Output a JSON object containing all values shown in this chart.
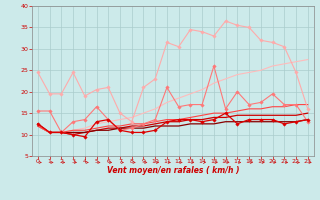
{
  "xlabel": "Vent moyen/en rafales ( km/h )",
  "bg_color": "#cceaea",
  "grid_color": "#aacccc",
  "x_ticks": [
    0,
    1,
    2,
    3,
    4,
    5,
    6,
    7,
    8,
    9,
    10,
    11,
    12,
    13,
    14,
    15,
    16,
    17,
    18,
    19,
    20,
    21,
    22,
    23
  ],
  "ylim": [
    5,
    40
  ],
  "xlim": [
    -0.5,
    23.5
  ],
  "yticks": [
    5,
    10,
    15,
    20,
    25,
    30,
    35,
    40
  ],
  "lines": [
    {
      "color": "#ffaaaa",
      "lw": 0.8,
      "marker": "D",
      "ms": 1.8,
      "y": [
        24.5,
        19.5,
        19.5,
        24.5,
        19.0,
        20.5,
        21.0,
        15.0,
        13.0,
        21.0,
        23.0,
        31.5,
        30.5,
        34.5,
        34.0,
        33.0,
        36.5,
        35.5,
        35.0,
        32.0,
        31.5,
        30.5,
        24.5,
        16.0
      ]
    },
    {
      "color": "#ff7777",
      "lw": 0.8,
      "marker": "D",
      "ms": 1.8,
      "y": [
        15.5,
        15.5,
        10.5,
        13.0,
        13.5,
        16.5,
        13.5,
        11.0,
        11.5,
        12.5,
        13.5,
        21.0,
        16.5,
        17.0,
        17.0,
        26.0,
        16.0,
        20.0,
        17.0,
        17.5,
        19.5,
        17.0,
        17.0,
        13.0
      ]
    },
    {
      "color": "#dd0000",
      "lw": 0.9,
      "marker": "D",
      "ms": 1.8,
      "y": [
        12.5,
        10.5,
        10.5,
        10.0,
        9.5,
        13.0,
        13.5,
        11.0,
        10.5,
        10.5,
        11.0,
        13.0,
        13.5,
        13.5,
        13.0,
        13.5,
        15.0,
        12.5,
        13.5,
        13.5,
        13.5,
        12.5,
        13.0,
        13.5
      ]
    },
    {
      "color": "#cc0000",
      "lw": 0.9,
      "marker": null,
      "ms": 0,
      "y": [
        12.5,
        10.5,
        10.5,
        10.0,
        10.5,
        11.0,
        11.5,
        11.5,
        12.0,
        12.0,
        12.5,
        13.0,
        13.0,
        13.5,
        13.5,
        14.0,
        14.0,
        14.5,
        14.5,
        14.5,
        14.5,
        14.5,
        14.5,
        15.0
      ]
    },
    {
      "color": "#880000",
      "lw": 0.9,
      "marker": null,
      "ms": 0,
      "y": [
        12.0,
        10.5,
        10.5,
        10.5,
        10.5,
        11.0,
        11.0,
        11.5,
        11.5,
        11.5,
        12.0,
        12.0,
        12.0,
        12.5,
        12.5,
        12.5,
        13.0,
        13.0,
        13.0,
        13.0,
        13.0,
        13.0,
        13.0,
        13.5
      ]
    },
    {
      "color": "#ffbbbb",
      "lw": 0.8,
      "marker": null,
      "ms": 0,
      "y": [
        12.0,
        10.5,
        10.5,
        11.0,
        11.5,
        12.5,
        13.0,
        13.5,
        14.0,
        15.0,
        16.0,
        17.5,
        18.5,
        19.5,
        20.5,
        22.0,
        23.0,
        24.0,
        24.5,
        25.0,
        26.0,
        26.5,
        27.0,
        27.5
      ]
    },
    {
      "color": "#ff4444",
      "lw": 0.8,
      "marker": null,
      "ms": 0,
      "y": [
        12.0,
        10.5,
        10.5,
        11.0,
        11.0,
        11.5,
        12.0,
        12.0,
        12.5,
        12.5,
        13.0,
        13.5,
        13.5,
        14.0,
        14.5,
        15.0,
        15.0,
        15.5,
        16.0,
        16.0,
        16.5,
        16.5,
        17.0,
        17.0
      ]
    }
  ],
  "arrow_color": "#cc2222",
  "xlabel_color": "#cc0000",
  "tick_color": "#cc0000",
  "spine_color": "#888888"
}
